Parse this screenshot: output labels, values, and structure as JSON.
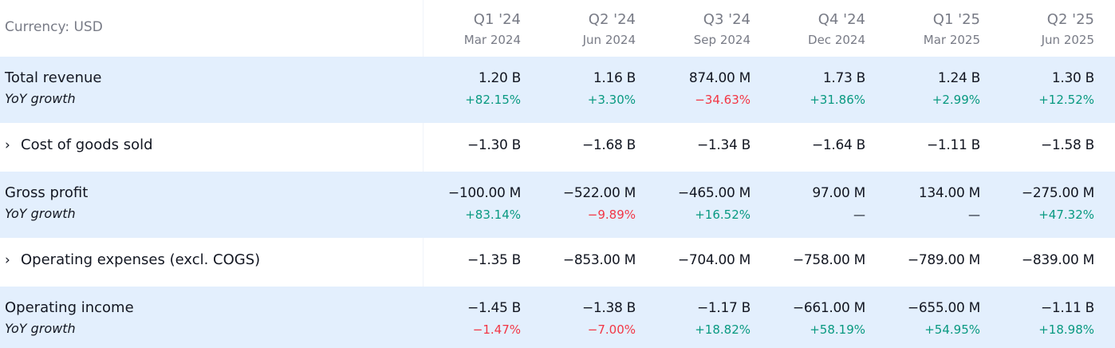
{
  "header": {
    "currency": "Currency: USD",
    "columns": [
      {
        "quarter": "Q1 '24",
        "date": "Mar 2024"
      },
      {
        "quarter": "Q2 '24",
        "date": "Jun 2024"
      },
      {
        "quarter": "Q3 '24",
        "date": "Sep 2024"
      },
      {
        "quarter": "Q4 '24",
        "date": "Dec 2024"
      },
      {
        "quarter": "Q1 '25",
        "date": "Mar 2025"
      },
      {
        "quarter": "Q2 '25",
        "date": "Jun 2025"
      }
    ]
  },
  "rows": [
    {
      "label": "Total revenue",
      "sub": "YoY growth",
      "values": [
        "1.20 B",
        "1.16 B",
        "874.00 M",
        "1.73 B",
        "1.24 B",
        "1.30 B"
      ],
      "growth": [
        "+82.15%",
        "+3.30%",
        "−34.63%",
        "+31.86%",
        "+2.99%",
        "+12.52%"
      ]
    },
    {
      "label": "Cost of goods sold",
      "chevron": "›",
      "values": [
        "−1.30 B",
        "−1.68 B",
        "−1.34 B",
        "−1.64 B",
        "−1.11 B",
        "−1.58 B"
      ]
    },
    {
      "label": "Gross profit",
      "sub": "YoY growth",
      "values": [
        "−100.00 M",
        "−522.00 M",
        "−465.00 M",
        "97.00 M",
        "134.00 M",
        "−275.00 M"
      ],
      "growth": [
        "+83.14%",
        "−9.89%",
        "+16.52%",
        "—",
        "—",
        "+47.32%"
      ]
    },
    {
      "label": "Operating expenses (excl. COGS)",
      "chevron": "›",
      "values": [
        "−1.35 B",
        "−853.00 M",
        "−704.00 M",
        "−758.00 M",
        "−789.00 M",
        "−839.00 M"
      ]
    },
    {
      "label": "Operating income",
      "sub": "YoY growth",
      "values": [
        "−1.45 B",
        "−1.38 B",
        "−1.17 B",
        "−661.00 M",
        "−655.00 M",
        "−1.11 B"
      ],
      "growth": [
        "−1.47%",
        "−7.00%",
        "+18.82%",
        "+58.19%",
        "+54.95%",
        "+18.98%"
      ]
    }
  ],
  "colors": {
    "positive": "#089981",
    "negative": "#f23645",
    "highlight": "#e3effd"
  }
}
